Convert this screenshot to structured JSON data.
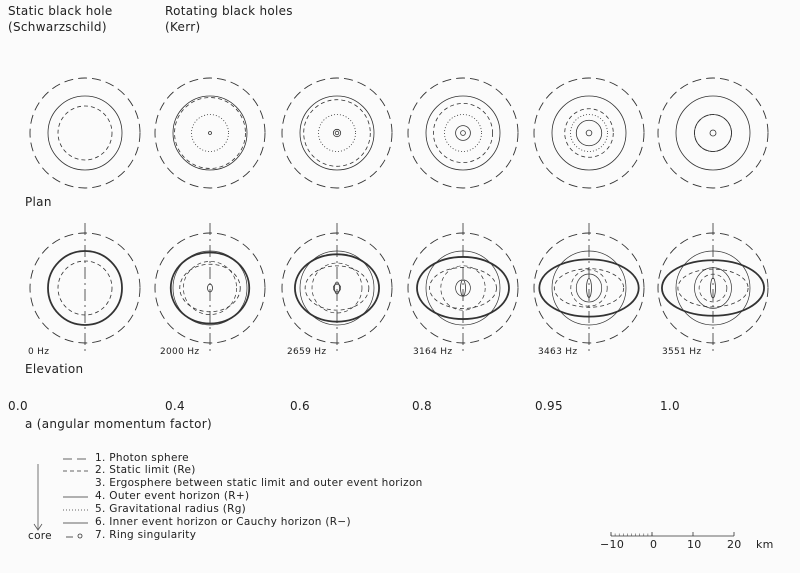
{
  "headers": {
    "static_title": "Static black hole",
    "static_sub": "(Schwarzschild)",
    "rotating_title": "Rotating black holes",
    "rotating_sub": "(Kerr)"
  },
  "rows": {
    "plan": "Plan",
    "elevation": "Elevation"
  },
  "columns": [
    {
      "a": "0.0",
      "freq": "0 Hz"
    },
    {
      "a": "0.4",
      "freq": "2000 Hz"
    },
    {
      "a": "0.6",
      "freq": "2659 Hz"
    },
    {
      "a": "0.8",
      "freq": "3164 Hz"
    },
    {
      "a": "0.95",
      "freq": "3463 Hz"
    },
    {
      "a": "1.0",
      "freq": "3551 Hz"
    }
  ],
  "a_label": "a (angular momentum factor)",
  "legend": {
    "items": [
      {
        "label": "1. Photon sphere",
        "style": "long-dash"
      },
      {
        "label": "2. Static limit (Re)",
        "style": "short-dash"
      },
      {
        "label": "3. Ergosphere between static limit and outer event horizon",
        "style": "none"
      },
      {
        "label": "4. Outer event horizon (R+)",
        "style": "solid"
      },
      {
        "label": "5. Gravitational radius (Rg)",
        "style": "dotted"
      },
      {
        "label": "6. Inner event horizon or Cauchy horizon (R−)",
        "style": "solid"
      },
      {
        "label": "7. Ring singularity",
        "style": "dash-ring"
      }
    ],
    "core_label": "core"
  },
  "scale": {
    "ticks": [
      "−10",
      "0",
      "10",
      "20"
    ],
    "unit": "km"
  }
}
